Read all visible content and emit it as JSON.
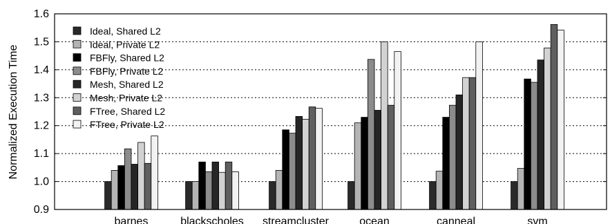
{
  "chart_data": {
    "type": "bar",
    "title": "",
    "xlabel": "",
    "ylabel": "Normalized Execution Time",
    "ylim": [
      0.9,
      1.6
    ],
    "yticks": [
      "0.9",
      "1.0",
      "1.1",
      "1.2",
      "1.3",
      "1.4",
      "1.5",
      "1.6"
    ],
    "grid": "horizontal dotted",
    "legend_position": "top-left",
    "categories": [
      "barnes",
      "blackscholes",
      "streamcluster",
      "ocean",
      "canneal",
      "svm"
    ],
    "series": [
      {
        "name": "Ideal, Shared L2",
        "color": "#2a2a2a",
        "values": [
          1.0,
          1.0,
          1.0,
          1.0,
          1.0,
          1.0
        ]
      },
      {
        "name": "Ideal, Private L2",
        "color": "#b4b4b4",
        "values": [
          1.04,
          1.0,
          1.04,
          1.21,
          1.037,
          1.047
        ]
      },
      {
        "name": "FBFly, Shared L2",
        "color": "#000000",
        "values": [
          1.057,
          1.07,
          1.185,
          1.23,
          1.23,
          1.367
        ]
      },
      {
        "name": "FBFly, Private L2",
        "color": "#8c8c8c",
        "values": [
          1.117,
          1.035,
          1.173,
          1.437,
          1.273,
          1.355
        ]
      },
      {
        "name": "Mesh, Shared L2",
        "color": "#262626",
        "values": [
          1.062,
          1.07,
          1.233,
          1.255,
          1.31,
          1.435
        ]
      },
      {
        "name": "Mesh, Private L2",
        "color": "#d2d2d2",
        "values": [
          1.14,
          1.033,
          1.223,
          1.5,
          1.372,
          1.478
        ]
      },
      {
        "name": "FTree, Shared L2",
        "color": "#5f5f5f",
        "values": [
          1.065,
          1.07,
          1.267,
          1.273,
          1.372,
          1.562
        ]
      },
      {
        "name": "FTree, Private L2",
        "color": "#f2f2f2",
        "values": [
          1.163,
          1.035,
          1.262,
          1.465,
          1.5,
          1.542
        ]
      }
    ]
  }
}
